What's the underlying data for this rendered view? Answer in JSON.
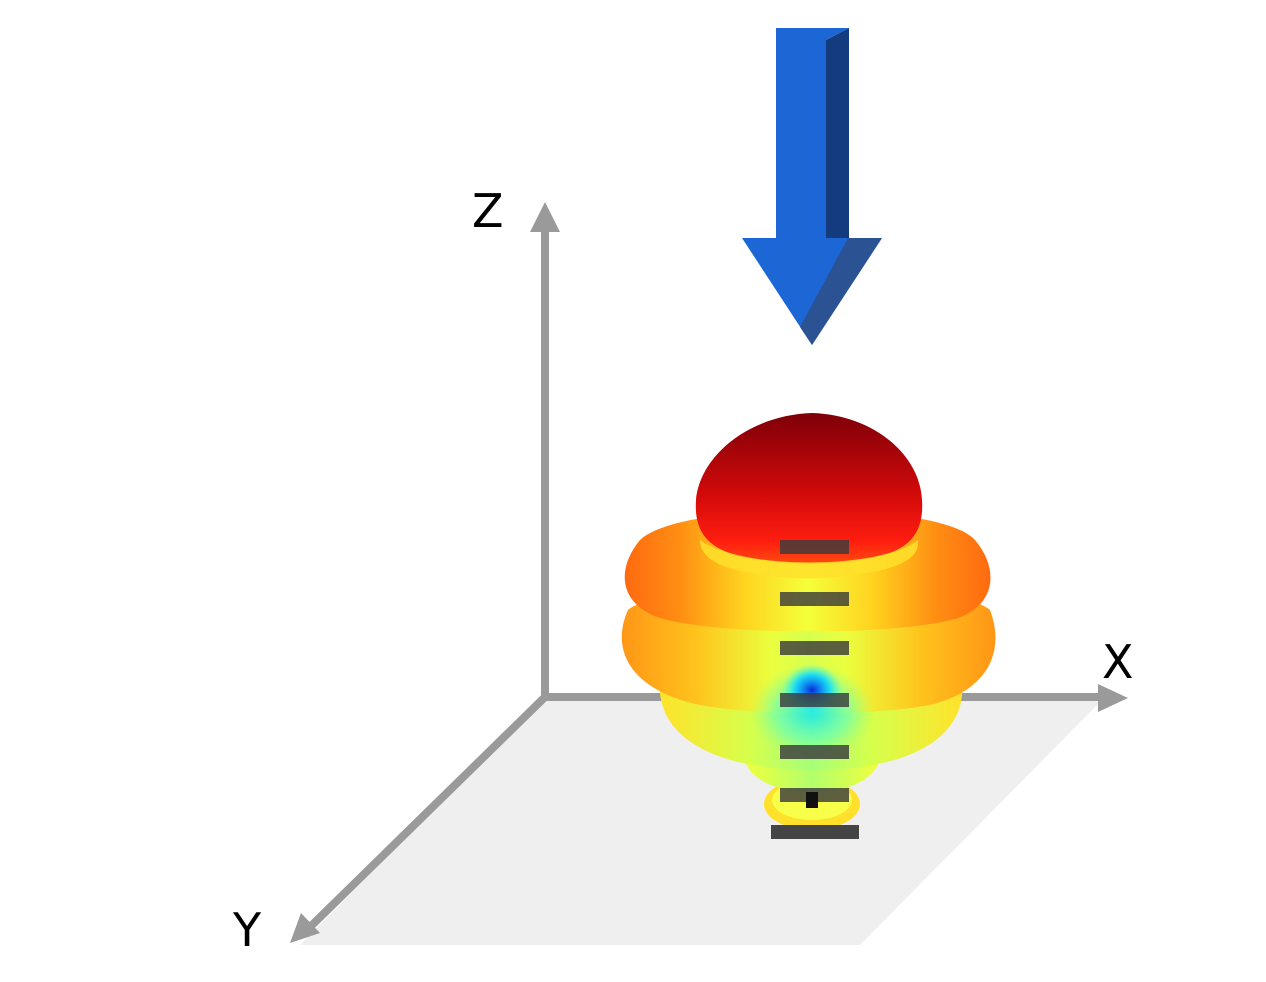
{
  "axes": {
    "x_label": "X",
    "y_label": "Y",
    "z_label": "Z"
  },
  "element_count": 7,
  "colors": {
    "axis": "#9a9a9a",
    "ground_plane": "#efefef",
    "arrow_front": "#1c66d6",
    "arrow_side": "#123a7a",
    "element_bar": "#3c3c3c",
    "pattern_colormap": "jet"
  }
}
